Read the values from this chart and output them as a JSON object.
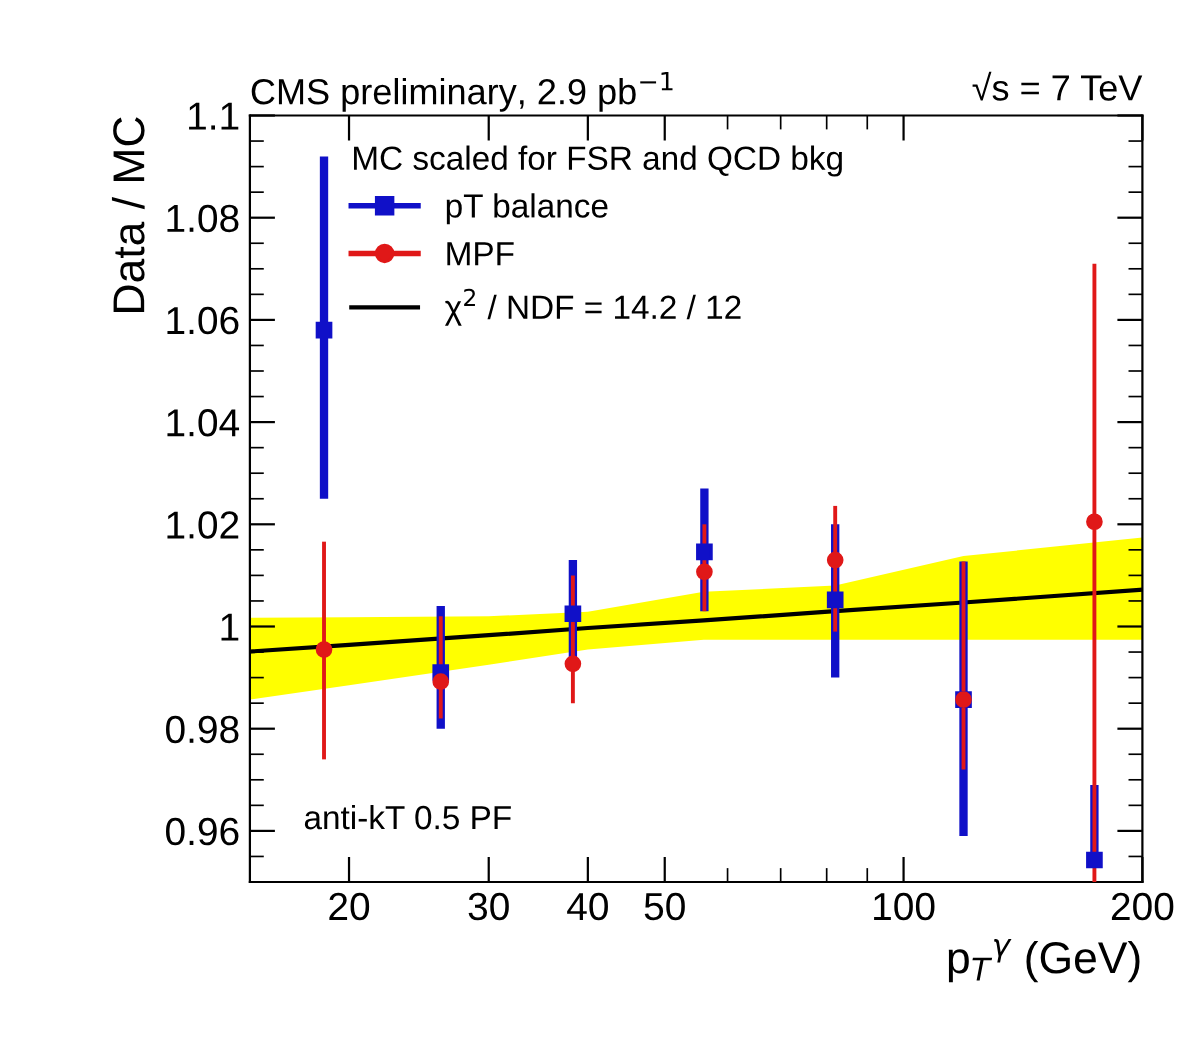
{
  "chart_data": {
    "type": "scatter",
    "title": "CMS preliminary, 2.9 pb$^{−1}$",
    "xlabel": "p$_{T}$$^{γ}$ (GeV)",
    "ylabel": "Data / MC",
    "legend_title": "MC scaled for FSR and QCD bkg",
    "annotations": [
      "√s = 7 TeV",
      "anti-kT 0.5 PF"
    ],
    "log": "x",
    "xlim": [
      15,
      200
    ],
    "xticks": [
      20,
      30,
      40,
      50,
      100,
      200
    ],
    "ylim": [
      0.95,
      1.1
    ],
    "yticks": [
      0.96,
      0.98,
      1,
      1.02,
      1.04,
      1.06,
      1.08,
      1.1
    ],
    "grid": false,
    "legend": "top left",
    "series": [
      {
        "name": "pT balance",
        "marker": "square",
        "color": "#1010c8",
        "x": [
          18.6,
          26.1,
          38.3,
          56.1,
          82,
          119,
          174
        ],
        "values": [
          1.058,
          0.991,
          1.0025,
          1.0146,
          1.0052,
          0.9857,
          0.9543
        ],
        "errors": [
          [
            1.025,
            1.092
          ],
          [
            0.98,
            1.004
          ],
          [
            0.992,
            1.013
          ],
          [
            1.003,
            1.027
          ],
          [
            0.99,
            1.02
          ],
          [
            0.959,
            1.0127
          ],
          [
            0.9543,
            0.969
          ]
        ]
      },
      {
        "name": "MPF",
        "marker": "circle",
        "color": "#e01818",
        "x": [
          18.6,
          26.1,
          38.3,
          56.1,
          82,
          119,
          174
        ],
        "values": [
          0.9955,
          0.9892,
          0.9927,
          1.0107,
          1.013,
          0.9857,
          1.0205
        ],
        "errors": [
          [
            0.974,
            1.0166
          ],
          [
            0.982,
            1.002
          ],
          [
            0.985,
            1.01
          ],
          [
            1.003,
            1.02
          ],
          [
            0.999,
            1.0236
          ],
          [
            0.972,
            1.0127
          ],
          [
            0.95,
            1.071
          ]
        ]
      },
      {
        "name": "χ$^{2}$ / NDF = 14.2 / 12",
        "type": "line",
        "marker": "none",
        "color": "#000000",
        "x": [
          15,
          20,
          30,
          40,
          56,
          82,
          119,
          200
        ],
        "values": [
          0.9951,
          0.9964,
          0.9983,
          0.9997,
          1.0012,
          1.003,
          1.0047,
          1.0072
        ],
        "lower": [
          0.9857,
          0.9885,
          0.9925,
          0.9955,
          0.9974,
          0.9974,
          0.9974,
          0.9974
        ],
        "upper": [
          1.0017,
          1.0018,
          1.002,
          1.0029,
          1.0068,
          1.008,
          1.0138,
          1.0174
        ]
      }
    ]
  }
}
